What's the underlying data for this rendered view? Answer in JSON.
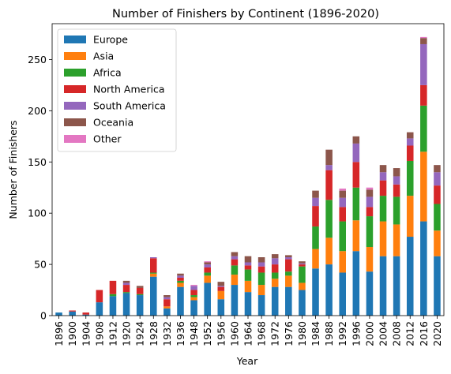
{
  "chart_data": {
    "type": "bar",
    "stacked": true,
    "title": "Number of Finishers by Continent (1896-2020)",
    "xlabel": "Year",
    "ylabel": "Number of Finishers",
    "ylim": [
      0,
      285
    ],
    "yticks": [
      0,
      50,
      100,
      150,
      200,
      250
    ],
    "legend_position": "top-left",
    "categories": [
      "1896",
      "1900",
      "1904",
      "1908",
      "1912",
      "1920",
      "1924",
      "1928",
      "1932",
      "1936",
      "1948",
      "1952",
      "1956",
      "1960",
      "1964",
      "1968",
      "1972",
      "1976",
      "1980",
      "1984",
      "1988",
      "1992",
      "1996",
      "2000",
      "2004",
      "2008",
      "2012",
      "2016",
      "2020"
    ],
    "series": [
      {
        "name": "Europe",
        "color": "#1f77b4",
        "values": [
          3,
          4,
          1,
          13,
          19,
          22,
          20,
          38,
          7,
          28,
          15,
          32,
          16,
          30,
          23,
          20,
          28,
          28,
          25,
          46,
          50,
          42,
          63,
          43,
          58,
          58,
          77,
          92,
          58
        ]
      },
      {
        "name": "Asia",
        "color": "#ff7f0e",
        "values": [
          0,
          0,
          0,
          0,
          0,
          0,
          0,
          3,
          2,
          4,
          3,
          7,
          8,
          10,
          11,
          10,
          8,
          11,
          7,
          19,
          26,
          21,
          30,
          24,
          34,
          31,
          40,
          68,
          25
        ]
      },
      {
        "name": "Africa",
        "color": "#2ca02c",
        "values": [
          0,
          0,
          0,
          0,
          2,
          1,
          1,
          1,
          0,
          2,
          2,
          3,
          0,
          9,
          11,
          12,
          6,
          4,
          16,
          22,
          37,
          29,
          32,
          30,
          25,
          27,
          34,
          45,
          26
        ]
      },
      {
        "name": "North America",
        "color": "#d62728",
        "values": [
          0,
          1,
          2,
          12,
          13,
          7,
          6,
          14,
          7,
          3,
          5,
          5,
          4,
          6,
          4,
          6,
          8,
          12,
          2,
          20,
          29,
          14,
          25,
          9,
          15,
          12,
          15,
          20,
          18
        ]
      },
      {
        "name": "South America",
        "color": "#9467bd",
        "values": [
          0,
          0,
          0,
          0,
          0,
          2,
          0,
          1,
          2,
          2,
          4,
          3,
          1,
          3,
          3,
          4,
          6,
          2,
          1,
          8,
          5,
          9,
          18,
          10,
          8,
          8,
          7,
          40,
          13
        ]
      },
      {
        "name": "Oceania",
        "color": "#8c564b",
        "values": [
          0,
          0,
          0,
          0,
          0,
          2,
          2,
          0,
          2,
          2,
          0,
          2,
          4,
          4,
          6,
          5,
          4,
          2,
          2,
          7,
          15,
          7,
          7,
          7,
          7,
          8,
          6,
          6,
          7
        ]
      },
      {
        "name": "Other",
        "color": "#e377c2",
        "values": [
          0,
          0,
          0,
          0,
          0,
          0,
          0,
          0,
          0,
          0,
          1,
          1,
          0,
          0,
          0,
          0,
          0,
          0,
          0,
          0,
          0,
          2,
          0,
          2,
          0,
          0,
          0,
          1,
          0
        ]
      }
    ]
  }
}
